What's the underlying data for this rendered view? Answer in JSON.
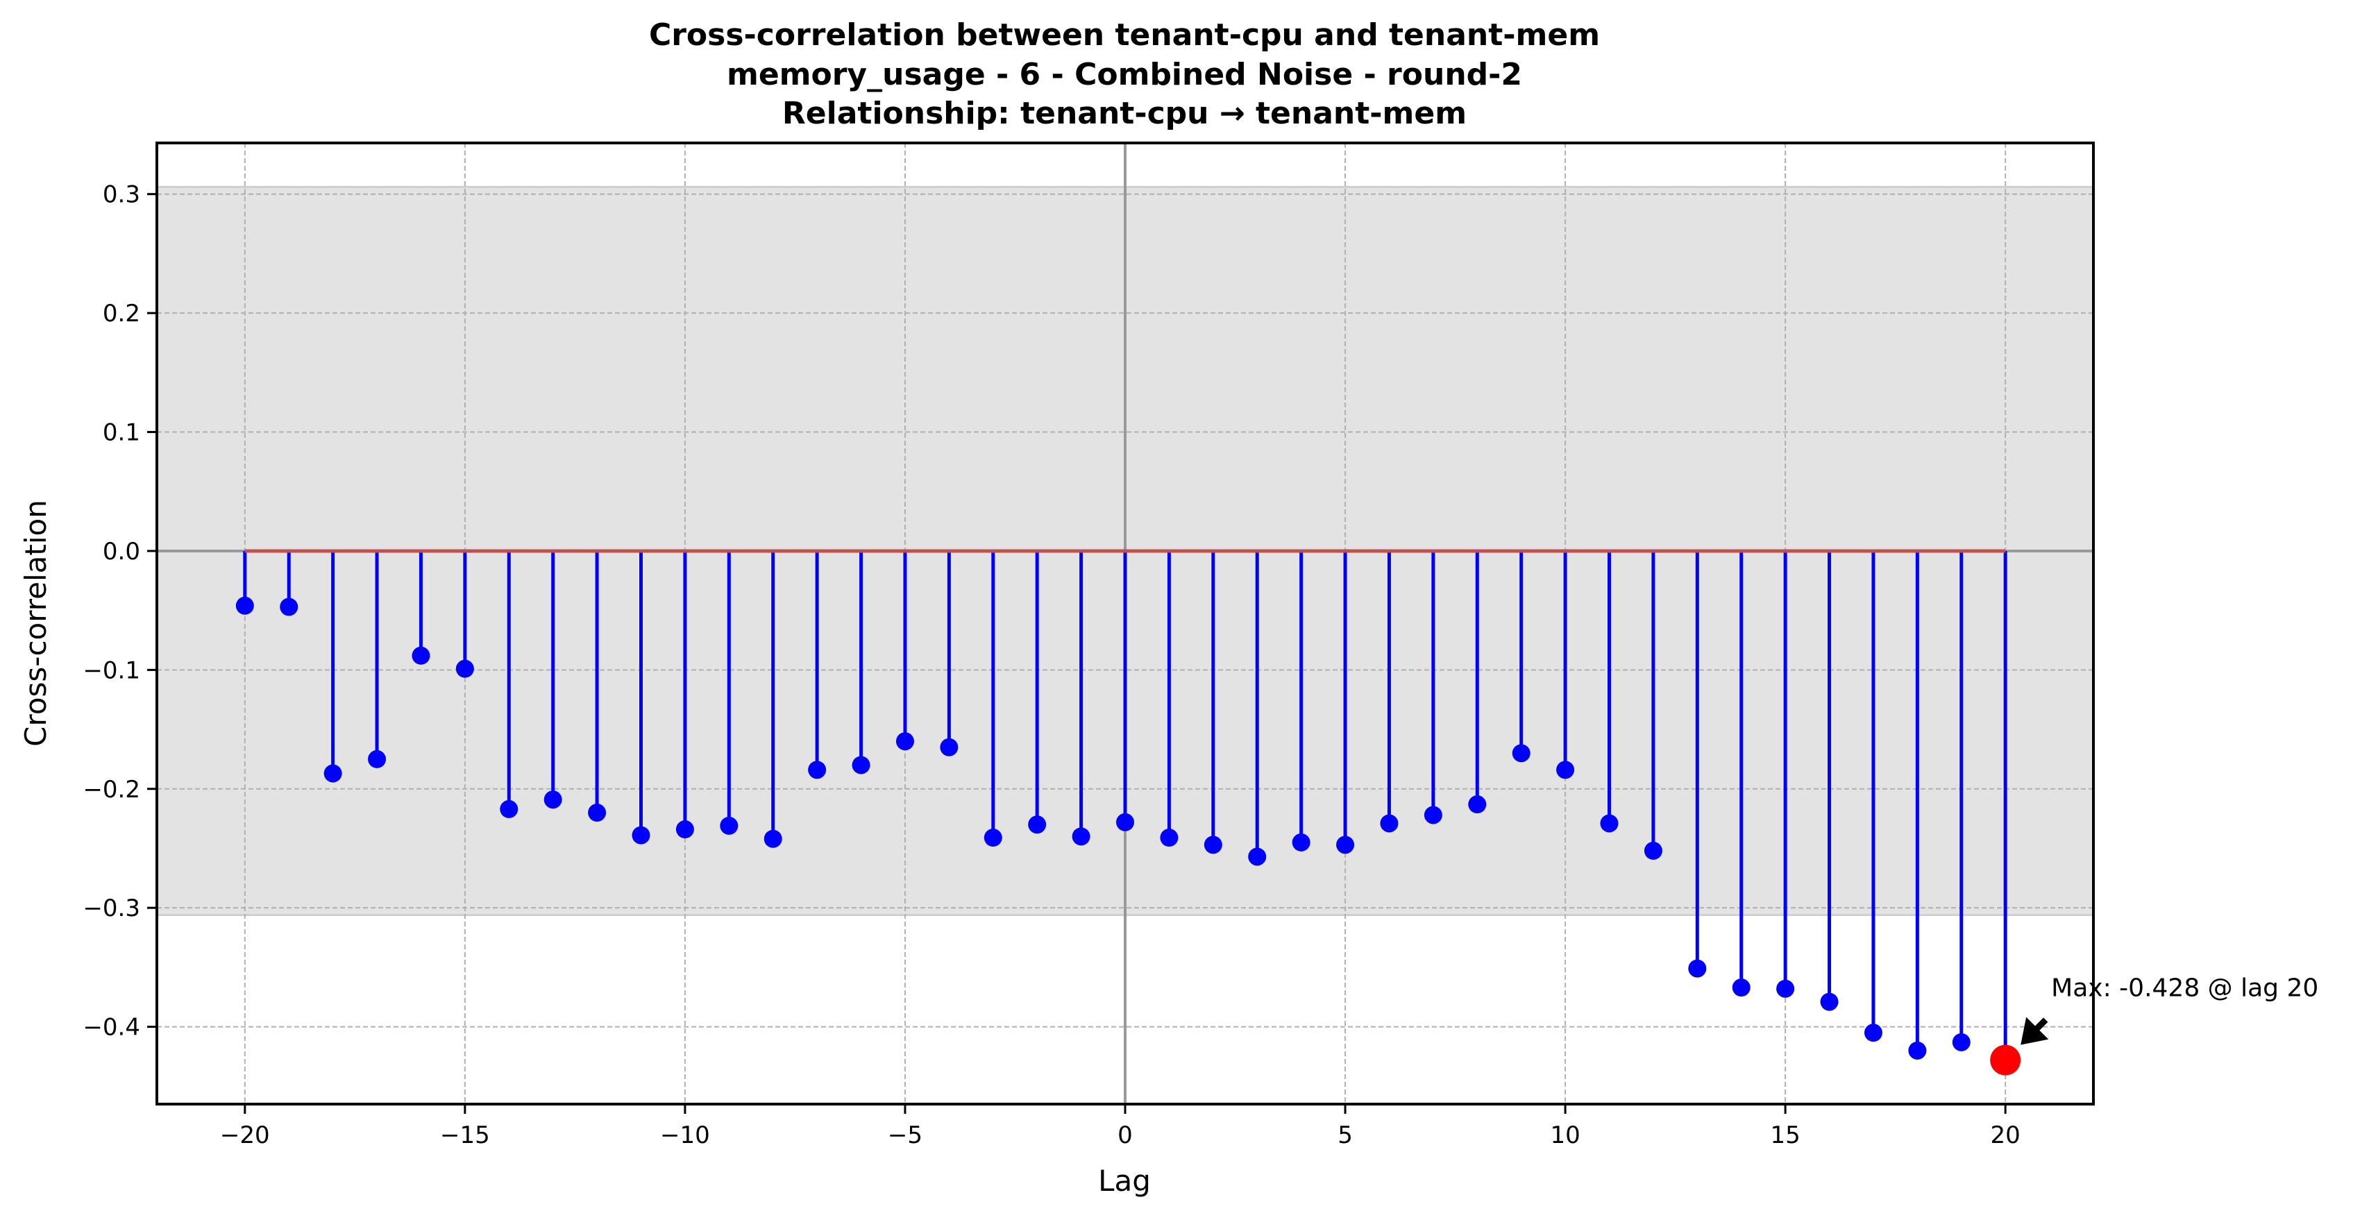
{
  "chart_data": {
    "type": "stem",
    "title_lines": [
      "Cross-correlation between tenant-cpu and tenant-mem",
      "memory_usage - 6 - Combined Noise - round-2",
      "Relationship: tenant-cpu → tenant-mem"
    ],
    "xlabel": "Lag",
    "ylabel": "Cross-correlation",
    "xlim": [
      -22,
      22
    ],
    "ylim": [
      -0.465,
      0.343
    ],
    "xticks": [
      -20,
      -15,
      -10,
      -5,
      0,
      5,
      10,
      15,
      20
    ],
    "yticks": [
      -0.4,
      -0.3,
      -0.2,
      -0.1,
      0.0,
      0.1,
      0.2,
      0.3
    ],
    "xtick_labels": [
      "−20",
      "−15",
      "−10",
      "−5",
      "0",
      "5",
      "10",
      "15",
      "20"
    ],
    "ytick_labels": [
      "−0.4",
      "−0.3",
      "−0.2",
      "−0.1",
      "0.0",
      "0.1",
      "0.2",
      "0.3"
    ],
    "grid": true,
    "confidence_band": [
      -0.306,
      0.306
    ],
    "lags": [
      -20,
      -19,
      -18,
      -17,
      -16,
      -15,
      -14,
      -13,
      -12,
      -11,
      -10,
      -9,
      -8,
      -7,
      -6,
      -5,
      -4,
      -3,
      -2,
      -1,
      0,
      1,
      2,
      3,
      4,
      5,
      6,
      7,
      8,
      9,
      10,
      11,
      12,
      13,
      14,
      15,
      16,
      17,
      18,
      19,
      20
    ],
    "values": [
      -0.046,
      -0.047,
      -0.187,
      -0.175,
      -0.088,
      -0.099,
      -0.217,
      -0.209,
      -0.22,
      -0.239,
      -0.234,
      -0.231,
      -0.242,
      -0.184,
      -0.18,
      -0.16,
      -0.165,
      -0.241,
      -0.23,
      -0.24,
      -0.228,
      -0.241,
      -0.247,
      -0.257,
      -0.245,
      -0.247,
      -0.229,
      -0.222,
      -0.213,
      -0.17,
      -0.184,
      -0.229,
      -0.252,
      -0.351,
      -0.367,
      -0.368,
      -0.379,
      -0.405,
      -0.42,
      -0.413,
      -0.428
    ],
    "max_point": {
      "lag": 20,
      "value": -0.428
    },
    "annotation": "Max: -0.428 @ lag 20",
    "colors": {
      "stem": "#0000ff",
      "baseline": "#c0504d",
      "max_marker": "#ff0000",
      "band": "#e3e3e3",
      "zero_lines": "#999999",
      "grid": "#b0b0b0"
    }
  }
}
